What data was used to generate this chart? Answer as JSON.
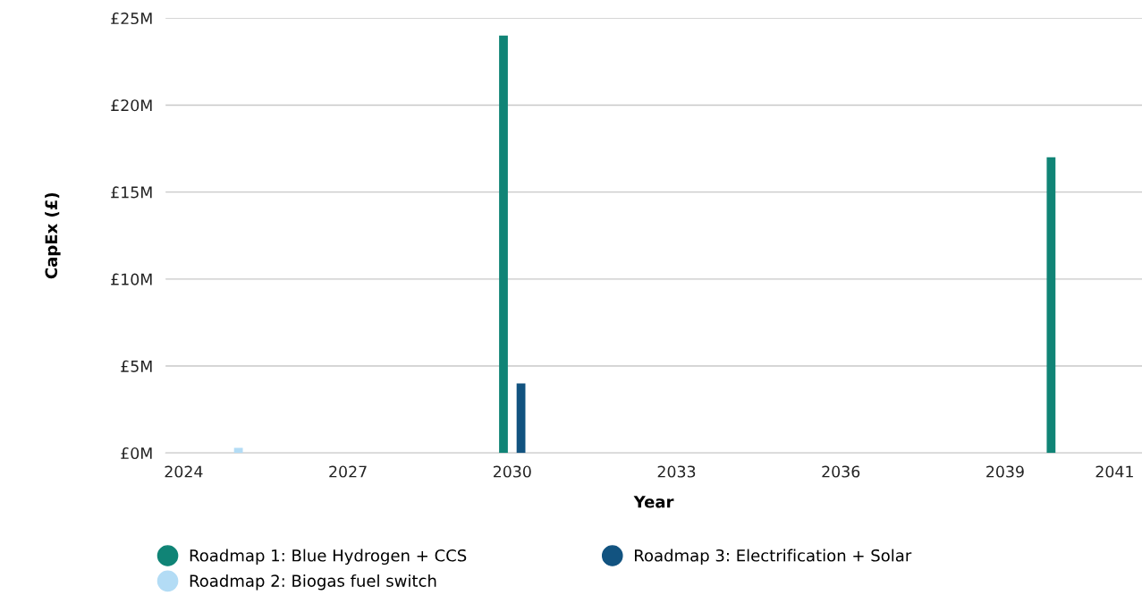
{
  "chart_data": {
    "type": "bar",
    "xlabel": "Year",
    "ylabel": "CapEx (£)",
    "series": [
      {
        "name": "Roadmap 1: Blue Hydrogen + CCS",
        "color": "#108476",
        "x": [
          2030,
          2040
        ],
        "values": [
          24,
          17
        ]
      },
      {
        "name": "Roadmap 2: Biogas fuel switch",
        "color": "#b3dcf5",
        "x": [
          2025
        ],
        "values": [
          0.3
        ]
      },
      {
        "name": "Roadmap 3: Electrification + Solar",
        "color": "#125380",
        "x": [
          2030
        ],
        "values": [
          4
        ]
      }
    ],
    "xlim": [
      2023.67,
      2041.5
    ],
    "xticks": [
      2024,
      2027,
      2030,
      2033,
      2036,
      2039,
      2041
    ],
    "ylim": [
      0,
      25
    ],
    "yticks": [
      {
        "value": 0,
        "label": "£0M"
      },
      {
        "value": 5,
        "label": "£5M"
      },
      {
        "value": 10,
        "label": "£10M"
      },
      {
        "value": 15,
        "label": "£15M"
      },
      {
        "value": 20,
        "label": "£20M"
      },
      {
        "value": 25,
        "label": "£25M"
      }
    ],
    "grid": "y",
    "legend": "bottom",
    "marker": "circle"
  }
}
